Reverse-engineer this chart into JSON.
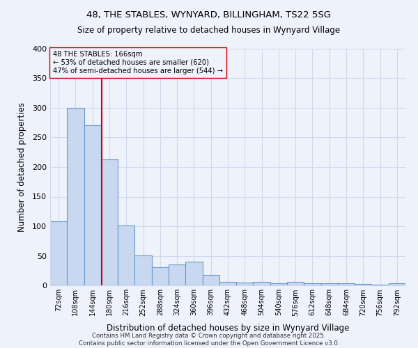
{
  "title1": "48, THE STABLES, WYNYARD, BILLINGHAM, TS22 5SG",
  "title2": "Size of property relative to detached houses in Wynyard Village",
  "xlabel": "Distribution of detached houses by size in Wynyard Village",
  "ylabel": "Number of detached properties",
  "bar_color": "#c8d8f0",
  "bar_edge_color": "#6699cc",
  "bg_color": "#eef2fb",
  "grid_color": "#d0d8ee",
  "vline_color": "#cc0000",
  "annotation_line1": "48 THE STABLES: 166sqm",
  "annotation_line2": "← 53% of detached houses are smaller (620)",
  "annotation_line3": "47% of semi-detached houses are larger (544) →",
  "vline_x": 2.53,
  "categories": [
    "72sqm",
    "108sqm",
    "144sqm",
    "180sqm",
    "216sqm",
    "252sqm",
    "288sqm",
    "324sqm",
    "360sqm",
    "396sqm",
    "432sqm",
    "468sqm",
    "504sqm",
    "540sqm",
    "576sqm",
    "612sqm",
    "648sqm",
    "684sqm",
    "720sqm",
    "756sqm",
    "792sqm"
  ],
  "values": [
    108,
    300,
    270,
    213,
    101,
    51,
    31,
    35,
    40,
    18,
    6,
    5,
    6,
    3,
    6,
    4,
    3,
    3,
    2,
    1,
    3
  ],
  "ylim": [
    0,
    400
  ],
  "yticks": [
    0,
    50,
    100,
    150,
    200,
    250,
    300,
    350,
    400
  ],
  "footer": "Contains HM Land Registry data © Crown copyright and database right 2025.\nContains public sector information licensed under the Open Government Licence v3.0.",
  "figsize": [
    6.0,
    5.0
  ],
  "dpi": 100
}
